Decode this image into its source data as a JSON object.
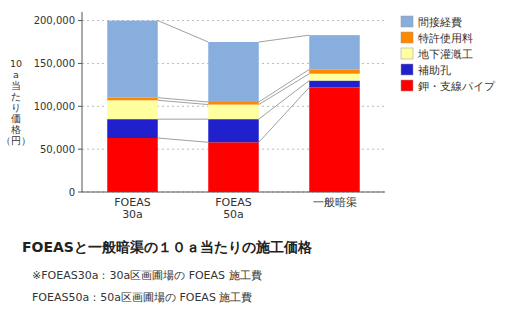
{
  "chart_data": {
    "type": "bar",
    "stacked": true,
    "title": "FOEASと一般暗渠の１０ａ当たりの施工価格",
    "ylabel": "10\na\n当\nた\nり\n価\n格\n（円）",
    "annotations": [
      "※FOEAS30a：30a区画圃場の FOEAS 施工費",
      "FOEAS50a：50a区画圃場の FOEAS 施工費"
    ],
    "categories": [
      "FOEAS\n30a",
      "FOEAS\n50a",
      "一般暗渠"
    ],
    "series": [
      {
        "name": "鉀・支線パイプ",
        "color": "#FF0000",
        "values": [
          63000,
          58000,
          122000
        ]
      },
      {
        "name": "補助孔",
        "color": "#2020CC",
        "values": [
          22000,
          27000,
          8000
        ]
      },
      {
        "name": "地下灌漑工",
        "color": "#FFFFA0",
        "values": [
          22000,
          17000,
          8000
        ]
      },
      {
        "name": "特許使用料",
        "color": "#FF8800",
        "values": [
          3000,
          3000,
          5000
        ]
      },
      {
        "name": "間接経費",
        "color": "#87AEDD",
        "values": [
          90000,
          70000,
          40000
        ]
      }
    ],
    "ylim": [
      0,
      210000
    ],
    "yticks": [
      0,
      {
        "value": 50000,
        "label": "50,000"
      },
      {
        "value": 100000,
        "label": "100,000"
      },
      {
        "value": 150000,
        "label": "150,000"
      },
      {
        "value": 200000,
        "label": "200,000"
      }
    ],
    "grid": true,
    "legend": "upper right"
  }
}
